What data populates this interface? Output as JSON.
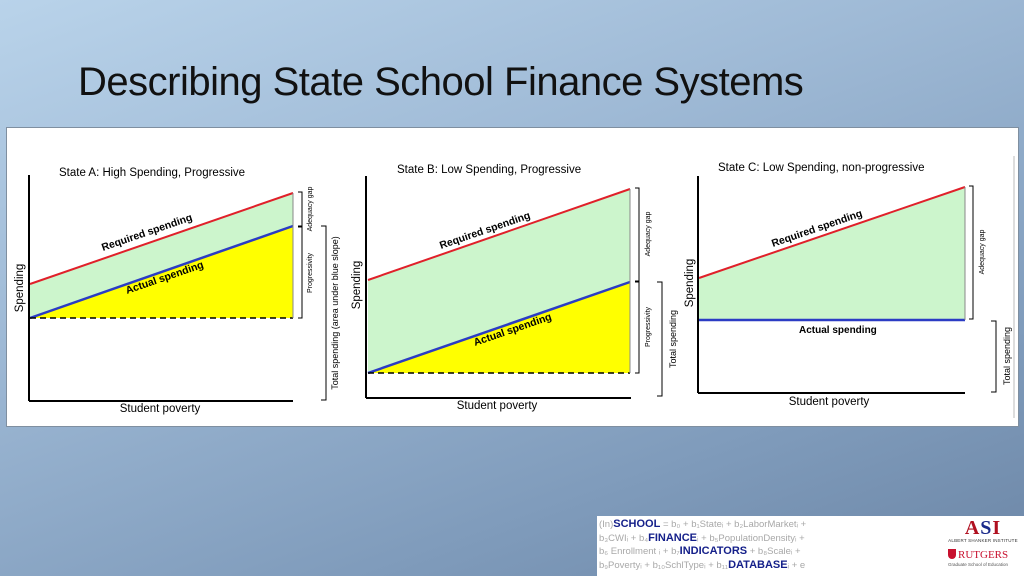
{
  "slide": {
    "title": "Describing State School Finance Systems"
  },
  "panels": [
    {
      "title": "State A: High Spending, Progressive",
      "required_label": "Required spending",
      "actual_label": "Actual spending",
      "y_label": "Spending",
      "x_label": "Student poverty",
      "gap_label": "Adequacy gap",
      "progressivity_label": "Progressivity",
      "total_label": "Total spending (area under blue slope)"
    },
    {
      "title": "State B: Low Spending, Progressive",
      "required_label": "Required spending",
      "actual_label": "Actual spending",
      "y_label": "Spending",
      "x_label": "Student poverty",
      "gap_label": "Adequacy gap",
      "progressivity_label": "Progressivity",
      "total_label": "Total spending"
    },
    {
      "title": "State C: Low Spending, non-progressive",
      "required_label": "Required spending",
      "actual_label": "Actual spending",
      "y_label": "Spending",
      "x_label": "Student poverty",
      "gap_label": "Adequacy gap",
      "total_label": "Total spending"
    }
  ],
  "colors": {
    "required_line": "#e0202a",
    "actual_line": "#2b3cc4",
    "gap_fill": "#ccf5cc",
    "spending_fill": "#ffff00"
  },
  "footer": {
    "formula_lines": [
      [
        "(In)",
        "SCHOOL",
        " = b₀ + b₁Stateᵢ + b₂LaborMarketᵢ +"
      ],
      [
        "b₃CWIᵢ + b₄",
        "FINANCE",
        "ᵢ + b₅PopulationDensityᵢ +"
      ],
      [
        "b₆ Enrollment ᵢ + b₇",
        "INDICATORS",
        " + b₈Scaleᵢ +"
      ],
      [
        "b₉Povertyᵢ + b₁₀SchlTypeᵢ + b₁₁",
        "DATABASE",
        "ᵢ + e"
      ]
    ],
    "asi_mark_a": "A",
    "asi_mark_s": "S",
    "asi_mark_i": "I",
    "asi_name": "ALBERT SHANKER INSTITUTE",
    "rutgers_name": "RUTGERS",
    "rutgers_sub": "Graduate School of Education"
  }
}
